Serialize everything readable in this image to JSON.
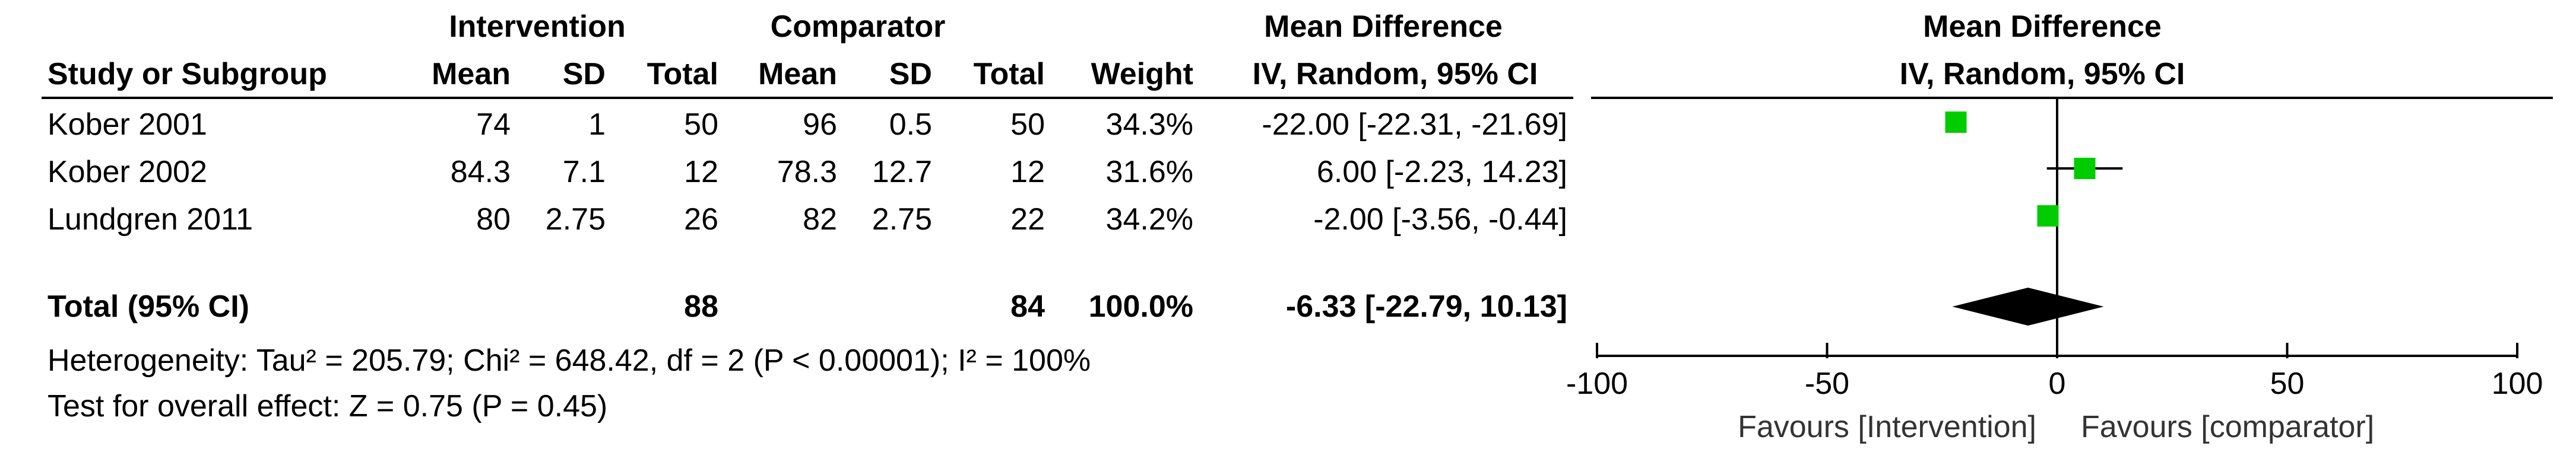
{
  "headers": {
    "group1": "Intervention",
    "group2": "Comparator",
    "md_title": "Mean Difference",
    "md_method": "IV, Random, 95% CI",
    "plot_title": "Mean Difference",
    "plot_method": "IV, Random, 95% CI",
    "study": "Study or Subgroup",
    "mean": "Mean",
    "sd": "SD",
    "total": "Total",
    "weight": "Weight"
  },
  "studies": [
    {
      "name": "Kober 2001",
      "m1": "74",
      "sd1": "1",
      "n1": "50",
      "m2": "96",
      "sd2": "0.5",
      "n2": "50",
      "weight": "34.3%",
      "ci_text": "-22.00 [-22.31, -21.69]"
    },
    {
      "name": "Kober 2002",
      "m1": "84.3",
      "sd1": "7.1",
      "n1": "12",
      "m2": "78.3",
      "sd2": "12.7",
      "n2": "12",
      "weight": "31.6%",
      "ci_text": "6.00 [-2.23, 14.23]"
    },
    {
      "name": "Lundgren 2011",
      "m1": "80",
      "sd1": "2.75",
      "n1": "26",
      "m2": "82",
      "sd2": "2.75",
      "n2": "22",
      "weight": "34.2%",
      "ci_text": "-2.00 [-3.56, -0.44]"
    }
  ],
  "total": {
    "label": "Total (95% CI)",
    "n1": "88",
    "n2": "84",
    "weight": "100.0%",
    "ci_text": "-6.33 [-22.79, 10.13]"
  },
  "heterogeneity": "Heterogeneity: Tau² = 205.79; Chi² = 648.42, df = 2 (P < 0.00001); I² = 100%",
  "overall_effect": "Test for overall effect: Z = 0.75 (P = 0.45)",
  "chart_data": {
    "type": "scatter",
    "subtype": "forest-plot",
    "title": "Mean Difference",
    "subtitle": "IV, Random, 95% CI",
    "xlim": [
      -100,
      100
    ],
    "ticks": [
      -100,
      -50,
      0,
      50,
      100
    ],
    "tick_labels": [
      "-100",
      "-50",
      "0",
      "50",
      "100"
    ],
    "favours_left": "Favours [Intervention]",
    "favours_right": "Favours [comparator]",
    "marker_color": "#00cc00",
    "studies": [
      {
        "name": "Kober 2001",
        "md": -22.0,
        "lower": -22.31,
        "upper": -21.69,
        "weight": 34.3
      },
      {
        "name": "Kober 2002",
        "md": 6.0,
        "lower": -2.23,
        "upper": 14.23,
        "weight": 31.6
      },
      {
        "name": "Lundgren 2011",
        "md": -2.0,
        "lower": -3.56,
        "upper": -0.44,
        "weight": 34.2
      }
    ],
    "pooled": {
      "md": -6.33,
      "lower": -22.79,
      "upper": 10.13
    }
  }
}
